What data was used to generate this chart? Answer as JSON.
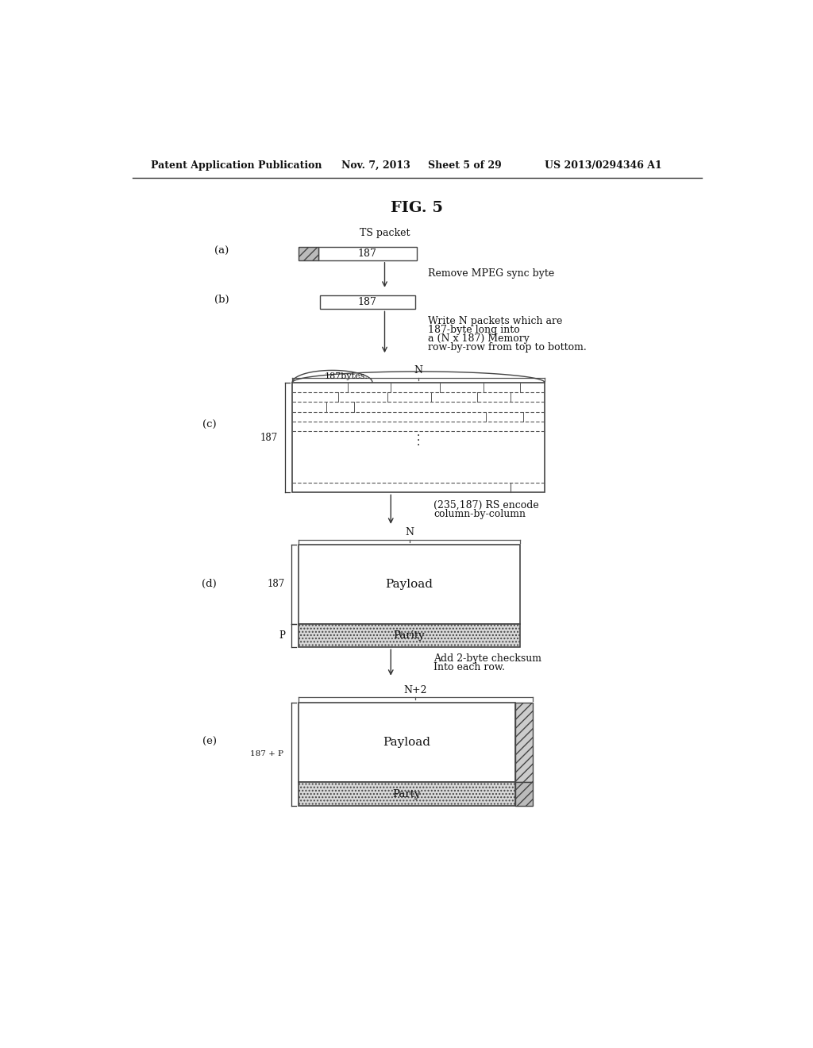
{
  "patent_header": "Patent Application Publication",
  "patent_date": "Nov. 7, 2013",
  "patent_sheet": "Sheet 5 of 29",
  "patent_number": "US 2013/0294346 A1",
  "fig_title": "FIG. 5",
  "bg_color": "#ffffff",
  "text_color": "#111111",
  "line_color": "#333333",
  "note_a": "TS packet",
  "label_a": "(a)",
  "note_ab": "Remove MPEG sync byte",
  "label_b": "(b)",
  "note_bc_1": "Write N packets which are",
  "note_bc_2": "187-byte long into",
  "note_bc_3": "a (N x 187) Memory",
  "note_bc_4": "row-by-row from top to bottom.",
  "label_c": "(c)",
  "note_c_top": "N",
  "note_c_bytes": "187bytes.",
  "note_c_brace": "187",
  "note_cd": "(235,187) RS encode",
  "note_cd2": "column-by-column",
  "label_d": "(d)",
  "note_d_top": "N",
  "note_d_187": "187",
  "note_d_P": "P",
  "note_d_payload": "Payload",
  "note_d_parity": "Parity",
  "note_de_1": "Add 2-byte checksum",
  "note_de_2": "Into each row.",
  "label_e": "(e)",
  "note_e_top": "N+2",
  "note_e_brace": "187 + P",
  "note_e_payload": "Payload",
  "note_e_parity": "Party"
}
